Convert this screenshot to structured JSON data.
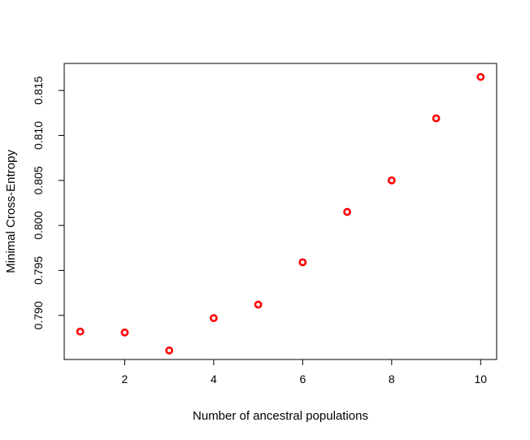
{
  "chart_data": {
    "type": "scatter",
    "title": "",
    "xlabel": "Number of ancestral populations",
    "ylabel": "Minimal Cross-Entropy",
    "x": [
      1,
      2,
      3,
      4,
      5,
      6,
      7,
      8,
      9,
      10
    ],
    "y": [
      0.7882,
      0.7881,
      0.7861,
      0.7897,
      0.7912,
      0.7959,
      0.8015,
      0.805,
      0.8119,
      0.8165
    ],
    "xlim": [
      0.64,
      10.36
    ],
    "ylim": [
      0.7851,
      0.818
    ],
    "xticks": [
      2,
      4,
      6,
      8,
      10
    ],
    "xtick_labels": [
      "2",
      "4",
      "6",
      "8",
      "10"
    ],
    "yticks": [
      0.79,
      0.795,
      0.8,
      0.805,
      0.81,
      0.815
    ],
    "ytick_labels": [
      "0.790",
      "0.795",
      "0.800",
      "0.805",
      "0.810",
      "0.815"
    ],
    "marker": "open-circle",
    "color": "#ff0000",
    "grid": false,
    "legend": "none"
  }
}
